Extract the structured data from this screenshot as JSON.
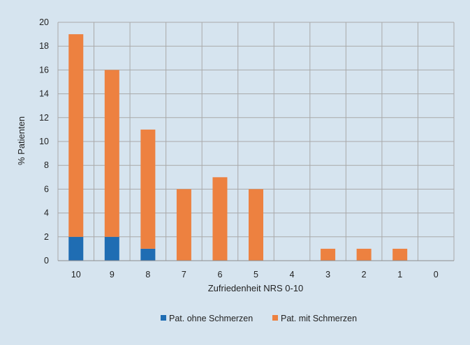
{
  "chart_data": {
    "type": "bar",
    "stacked": true,
    "categories": [
      "10",
      "9",
      "8",
      "7",
      "6",
      "5",
      "4",
      "3",
      "2",
      "1",
      "0"
    ],
    "series": [
      {
        "name": "Pat. ohne Schmerzen",
        "values": [
          2,
          2,
          1,
          0,
          0,
          0,
          0,
          0,
          0,
          0,
          0
        ],
        "color": "#1f6db3"
      },
      {
        "name": "Pat. mit Schmerzen",
        "values": [
          17,
          14,
          10,
          6,
          7,
          6,
          0,
          1,
          1,
          1,
          0
        ],
        "color": "#ed8140"
      }
    ],
    "xlabel": "Zufriedenheit NRS 0-10",
    "ylabel": "% Patienten",
    "ylim": [
      0,
      20
    ],
    "yticks": [
      0,
      2,
      4,
      6,
      8,
      10,
      12,
      14,
      16,
      18,
      20
    ],
    "grid": true,
    "legend_position": "bottom"
  },
  "colors": {
    "background": "#d6e4ef",
    "gridline": "#a9a9a9",
    "axis": "#8c8c8c"
  }
}
